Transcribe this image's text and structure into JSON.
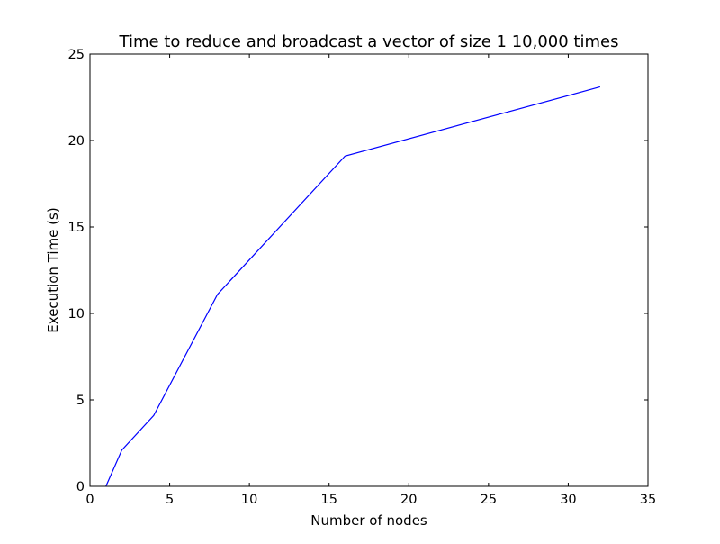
{
  "chart_data": {
    "type": "line",
    "title": "Time to reduce and broadcast a vector of size 1 10,000 times",
    "xlabel": "Number of nodes",
    "ylabel": "Execution Time (s)",
    "xlim": [
      0,
      35
    ],
    "ylim": [
      0,
      25
    ],
    "xticks": [
      "0",
      "5",
      "10",
      "15",
      "20",
      "25",
      "30",
      "35"
    ],
    "yticks": [
      "0",
      "5",
      "10",
      "15",
      "20",
      "25"
    ],
    "grid": false,
    "legend": "none",
    "series": [
      {
        "x": [
          1,
          2,
          4,
          8,
          16,
          32
        ],
        "y": [
          0.0,
          2.1,
          4.1,
          11.1,
          19.1,
          23.1
        ],
        "color": "#0000ff"
      }
    ]
  }
}
